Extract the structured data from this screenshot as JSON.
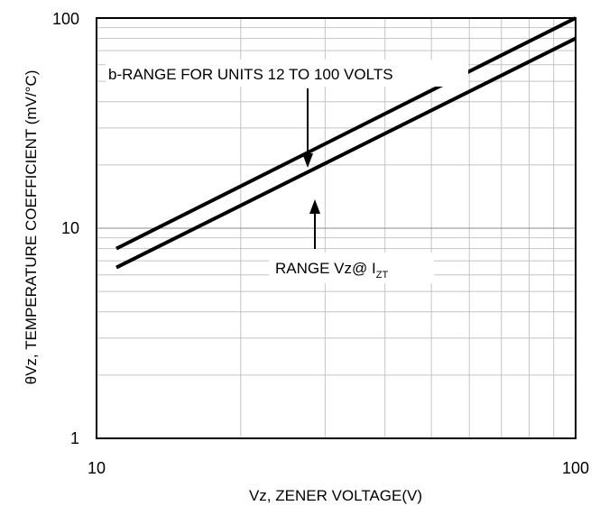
{
  "chart_data": {
    "type": "line",
    "xlabel": "Vz, ZENER VOLTAGE(V)",
    "ylabel": "θVz, TEMPERATURE COEFFICIENT (mV/°C)",
    "xscale": "log",
    "yscale": "log",
    "xlim": [
      10,
      100
    ],
    "ylim": [
      1,
      100
    ],
    "x_ticks": [
      "10",
      "100"
    ],
    "y_ticks": [
      "1",
      "10",
      "100"
    ],
    "grid": true,
    "series": [
      {
        "x": [
          11,
          100
        ],
        "y": [
          8.0,
          100
        ]
      },
      {
        "x": [
          11,
          100
        ],
        "y": [
          6.5,
          80
        ]
      }
    ],
    "annotations": {
      "upper_label": "b-RANGE FOR UNITS 12 TO 100 VOLTS",
      "lower_label_main": "RANGE Vz@ I",
      "lower_label_sub": "ZT"
    }
  }
}
